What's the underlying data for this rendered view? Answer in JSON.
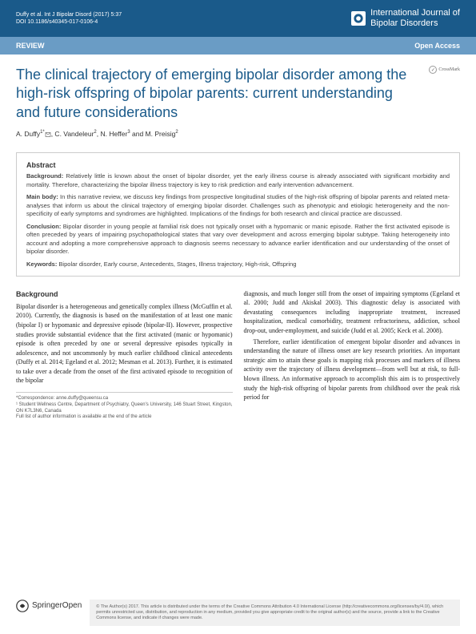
{
  "header": {
    "citation_line1": "Duffy et al. Int J Bipolar Disord (2017) 5:37",
    "citation_line2": "DOI 10.1186/s40345-017-0106-4",
    "journal_name_line1": "International Journal of",
    "journal_name_line2": "Bipolar Disorders"
  },
  "review_bar": {
    "label": "REVIEW",
    "open_access": "Open Access"
  },
  "crossmark": "CrossMark",
  "title": "The clinical trajectory of emerging bipolar disorder among the high-risk offspring of bipolar parents: current understanding and future considerations",
  "authors_html": "A. Duffy<sup>1*</sup><svg width=\"8\" height=\"8\" viewBox=\"0 0 16 16\" style=\"vertical-align:middle\"><rect x=\"2\" y=\"3\" width=\"12\" height=\"10\" fill=\"none\" stroke=\"#333\" stroke-width=\"1\"/><path d=\"M2 3 L8 8 L14 3\" fill=\"none\" stroke=\"#333\" stroke-width=\"1\"/></svg>, C. Vandeleur<sup>2</sup>, N. Heffer<sup>3</sup> and M. Preisig<sup>2</sup>",
  "abstract": {
    "heading": "Abstract",
    "background_label": "Background:",
    "background_text": " Relatively little is known about the onset of bipolar disorder, yet the early illness course is already associated with significant morbidity and mortality. Therefore, characterizing the bipolar illness trajectory is key to risk prediction and early intervention advancement.",
    "mainbody_label": "Main body:",
    "mainbody_text": " In this narrative review, we discuss key findings from prospective longitudinal studies of the high-risk offspring of bipolar parents and related meta-analyses that inform us about the clinical trajectory of emerging bipolar disorder. Challenges such as phenotypic and etiologic heterogeneity and the non-specificity of early symptoms and syndromes are highlighted. Implications of the findings for both research and clinical practice are discussed.",
    "conclusion_label": "Conclusion:",
    "conclusion_text": " Bipolar disorder in young people at familial risk does not typically onset with a hypomanic or manic episode. Rather the first activated episode is often preceded by years of impairing psychopathological states that vary over development and across emerging bipolar subtype. Taking heterogeneity into account and adopting a more comprehensive approach to diagnosis seems necessary to advance earlier identification and our understanding of the onset of bipolar disorder.",
    "keywords_label": "Keywords:",
    "keywords_text": " Bipolar disorder, Early course, Antecedents, Stages, Illness trajectory, High-risk, Offspring"
  },
  "body": {
    "heading": "Background",
    "col1_p1": "Bipolar disorder is a heterogeneous and genetically complex illness (McGuffin et al. 2010). Currently, the diagnosis is based on the manifestation of at least one manic (bipolar I) or hypomanic and depressive episode (bipolar-II). However, prospective studies provide substantial evidence that the first activated (manic or hypomanic) episode is often preceded by one or several depressive episodes typically in adolescence, and not uncommonly by much earlier childhood clinical antecedents (Duffy et al. 2014; Egeland et al. 2012; Mesman et al. 2013). Further, it is estimated to take over a decade from the onset of the first activated episode to recognition of the bipolar",
    "col2_p1": "diagnosis, and much longer still from the onset of impairing symptoms (Egeland et al. 2000; Judd and Akiskal 2003). This diagnostic delay is associated with devastating consequences including inappropriate treatment, increased hospitalization, medical comorbidity, treatment refractoriness, addiction, school drop-out, under-employment, and suicide (Judd et al. 2005; Keck et al. 2008).",
    "col2_p2": "Therefore, earlier identification of emergent bipolar disorder and advances in understanding the nature of illness onset are key research priorities. An important strategic aim to attain these goals is mapping risk processes and markers of illness activity over the trajectory of illness development—from well but at risk, to full-blown illness. An informative approach to accomplish this aim is to prospectively study the high-risk offspring of bipolar parents from childhood over the peak risk period for"
  },
  "correspondence": {
    "line1": "*Correspondence: anne.duffy@queensu.ca",
    "line2": "¹ Student Wellness Centre, Department of Psychiatry, Queen's University, 146 Stuart Street, Kingston, ON K7L3N6, Canada",
    "line3": "Full list of author information is available at the end of the article"
  },
  "footer": {
    "springer": "SpringerOpen",
    "license": "© The Author(s) 2017. This article is distributed under the terms of the Creative Commons Attribution 4.0 International License (http://creativecommons.org/licenses/by/4.0/), which permits unrestricted use, distribution, and reproduction in any medium, provided you give appropriate credit to the original author(s) and the source, provide a link to the Creative Commons license, and indicate if changes were made."
  },
  "colors": {
    "header_bg": "#1a5a8a",
    "review_bg": "#6a9cc5",
    "title_color": "#1a5a8a"
  }
}
